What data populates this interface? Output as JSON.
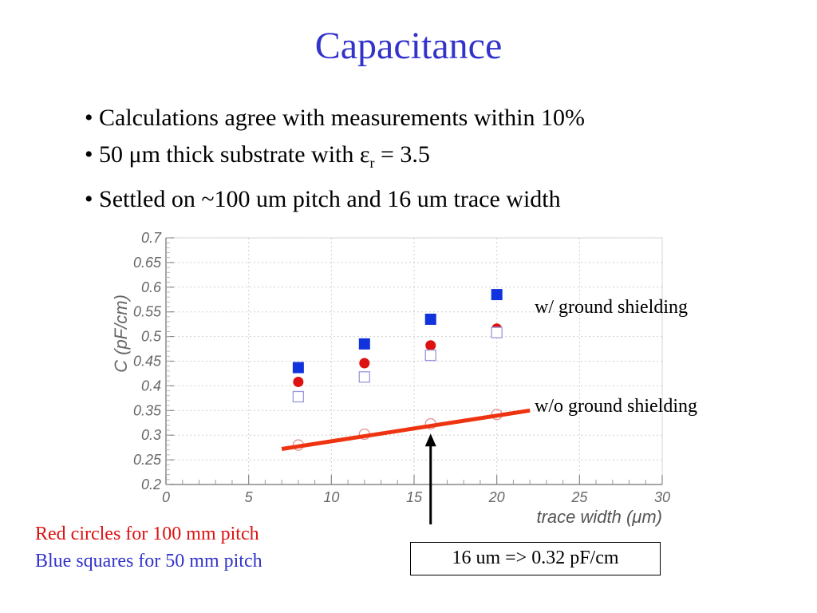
{
  "slide": {
    "title": "Capacitance",
    "bullets": [
      {
        "pre": "• Calculations agree with measurements within 10%",
        "sub": "",
        "post": ""
      },
      {
        "pre": "• 50 μm thick substrate with ε",
        "sub": "r",
        "post": " = 3.5"
      },
      {
        "pre": "• Settled on ~100 um pitch and 16 um trace width",
        "sub": "",
        "post": ""
      }
    ],
    "annotations": {
      "with_shield": "w/ ground shielding",
      "without_shield": "w/o ground shielding",
      "callout": "16 um => 0.32 pF/cm",
      "red_note": "Red circles for 100 mm pitch",
      "blue_note": "Blue squares for 50 mm pitch"
    },
    "colors": {
      "title": "#3333cc",
      "red": "#dd1111",
      "blue": "#1133dd",
      "highlight_line": "#ee3311"
    }
  },
  "chart_data": {
    "type": "scatter",
    "xlabel": "trace width (μm)",
    "ylabel": "C (pF/cm)",
    "xlim": [
      0,
      30
    ],
    "ylim": [
      0.2,
      0.7
    ],
    "x_ticks": [
      "0",
      "5",
      "10",
      "15",
      "20",
      "25",
      "30"
    ],
    "y_ticks": [
      "0.2",
      "0.25",
      "0.3",
      "0.35",
      "0.4",
      "0.45",
      "0.5",
      "0.55",
      "0.6",
      "0.65",
      "0.7"
    ],
    "grid": true,
    "series": [
      {
        "marker": "filled-square",
        "color": "#1133dd",
        "x": [
          8,
          12,
          16,
          20
        ],
        "y": [
          0.437,
          0.485,
          0.535,
          0.585
        ]
      },
      {
        "marker": "filled-circle",
        "color": "#dd1111",
        "x": [
          8,
          12,
          16,
          20
        ],
        "y": [
          0.408,
          0.446,
          0.482,
          0.516
        ]
      },
      {
        "marker": "open-square",
        "color": "#9999dd",
        "x": [
          8,
          12,
          16,
          20
        ],
        "y": [
          0.378,
          0.418,
          0.462,
          0.508
        ]
      },
      {
        "marker": "open-circle",
        "color": "#e09090",
        "x": [
          8,
          12,
          16,
          20
        ],
        "y": [
          0.28,
          0.302,
          0.323,
          0.342
        ]
      }
    ],
    "trend_line": {
      "x": [
        7,
        22
      ],
      "y": [
        0.272,
        0.35
      ]
    },
    "arrow": {
      "x": 16,
      "y": 0.3
    }
  }
}
